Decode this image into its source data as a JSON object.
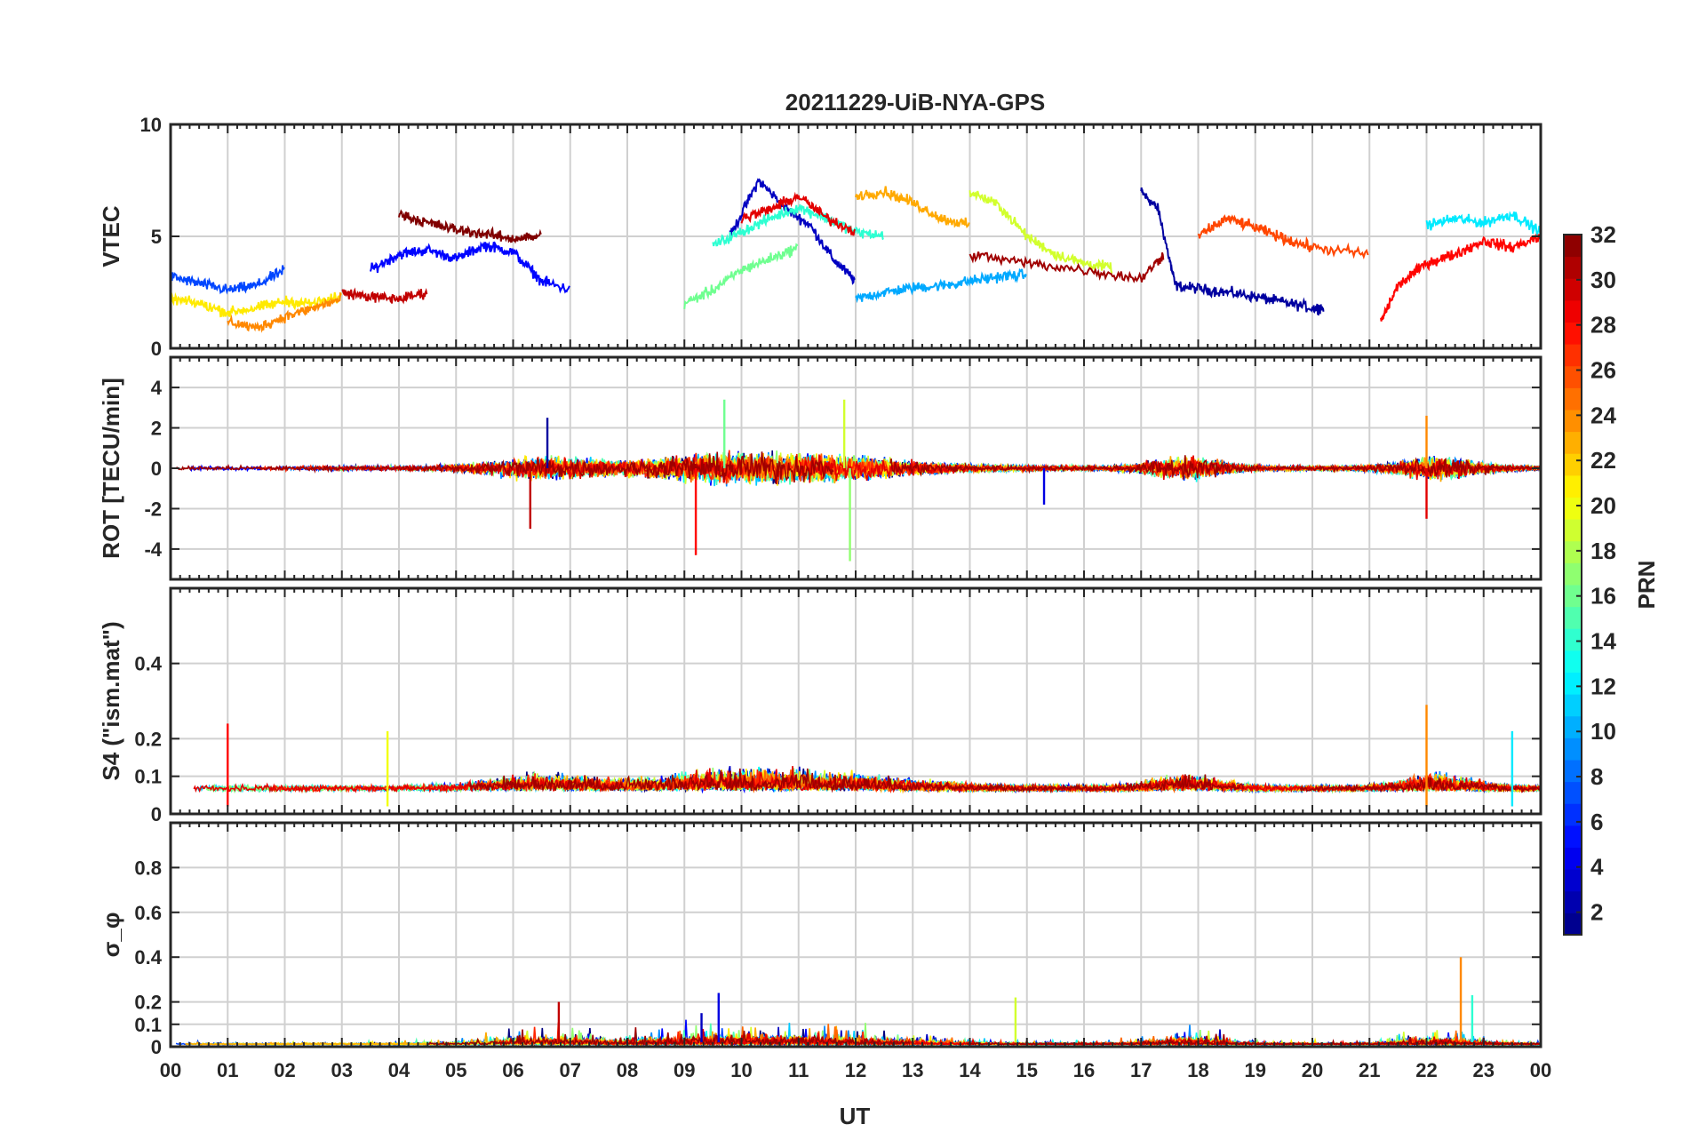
{
  "chart_data": [
    {
      "type": "line",
      "panel": "vtec",
      "title": "20211229-UiB-NYA-GPS",
      "ylabel": "VTEC",
      "ylim": [
        0,
        10
      ],
      "yticks": [
        "0",
        "5",
        "10"
      ],
      "yticks_values": [
        0,
        5,
        10
      ],
      "grid": true,
      "color_by": "PRN",
      "series": [
        {
          "prn": 2,
          "x": [
            17.0,
            17.3,
            17.6,
            18.2,
            18.8,
            19.4,
            20.0,
            20.2
          ],
          "y": [
            7.0,
            6.2,
            2.8,
            2.6,
            2.4,
            2.1,
            1.8,
            1.8
          ]
        },
        {
          "prn": 3,
          "x": [
            9.8,
            10.3,
            10.8,
            11.2,
            11.6,
            12.0
          ],
          "y": [
            5.0,
            7.5,
            6.2,
            5.5,
            4.0,
            3.0
          ]
        },
        {
          "prn": 5,
          "x": [
            3.5,
            4.0,
            4.5,
            5.0,
            5.5,
            6.0,
            6.5,
            7.0
          ],
          "y": [
            3.5,
            4.2,
            4.4,
            4.0,
            4.6,
            4.3,
            3.0,
            2.6
          ]
        },
        {
          "prn": 7,
          "x": [
            0.0,
            0.5,
            1.0,
            1.5,
            2.0
          ],
          "y": [
            3.2,
            2.9,
            2.6,
            2.8,
            3.5
          ]
        },
        {
          "prn": 10,
          "x": [
            12.0,
            12.5,
            13.0,
            13.5,
            14.0,
            14.5,
            15.0
          ],
          "y": [
            2.2,
            2.5,
            2.7,
            2.8,
            3.0,
            3.2,
            3.3
          ]
        },
        {
          "prn": 12,
          "x": [
            22.0,
            22.5,
            23.0,
            23.5,
            24.0
          ],
          "y": [
            5.5,
            5.8,
            5.6,
            6.0,
            5.2
          ]
        },
        {
          "prn": 14,
          "x": [
            9.5,
            10.0,
            10.5,
            11.0,
            11.5,
            12.0,
            12.5
          ],
          "y": [
            4.6,
            5.2,
            5.8,
            6.3,
            5.8,
            5.2,
            5.0
          ]
        },
        {
          "prn": 16,
          "x": [
            9.0,
            9.5,
            10.0,
            10.5,
            11.0
          ],
          "y": [
            2.0,
            2.6,
            3.5,
            4.0,
            4.5
          ]
        },
        {
          "prn": 19,
          "x": [
            14.0,
            14.5,
            15.0,
            15.5,
            16.0,
            16.5
          ],
          "y": [
            7.0,
            6.4,
            5.0,
            4.2,
            3.8,
            3.6
          ]
        },
        {
          "prn": 21,
          "x": [
            0.0,
            0.5,
            1.0,
            1.5,
            2.0,
            2.5,
            3.0
          ],
          "y": [
            2.2,
            2.0,
            1.6,
            1.8,
            2.1,
            2.0,
            2.3
          ]
        },
        {
          "prn": 23,
          "x": [
            12.0,
            12.5,
            13.0,
            13.5,
            14.0
          ],
          "y": [
            6.8,
            7.0,
            6.5,
            5.8,
            5.5
          ]
        },
        {
          "prn": 24,
          "x": [
            1.0,
            1.5,
            2.0,
            2.5,
            3.0
          ],
          "y": [
            1.2,
            0.9,
            1.4,
            1.8,
            2.2
          ]
        },
        {
          "prn": 26,
          "x": [
            18.0,
            18.5,
            19.0,
            19.5,
            20.0,
            21.0
          ],
          "y": [
            5.0,
            5.8,
            5.4,
            4.9,
            4.5,
            4.2
          ]
        },
        {
          "prn": 28,
          "x": [
            21.2,
            21.5,
            22.0,
            22.5,
            23.0,
            23.5,
            24.0
          ],
          "y": [
            1.2,
            2.8,
            3.8,
            4.2,
            4.8,
            4.5,
            5.0
          ]
        },
        {
          "prn": 30,
          "x": [
            3.0,
            3.5,
            4.0,
            4.5
          ],
          "y": [
            2.5,
            2.3,
            2.2,
            2.5
          ]
        },
        {
          "prn": 32,
          "x": [
            4.0,
            4.5,
            5.0,
            5.5,
            6.0,
            6.5
          ],
          "y": [
            6.0,
            5.6,
            5.3,
            5.1,
            4.9,
            5.0
          ]
        },
        {
          "prn": 31,
          "x": [
            14.0,
            15.0,
            16.0,
            17.0,
            17.4
          ],
          "y": [
            4.2,
            3.8,
            3.5,
            3.1,
            4.2
          ]
        },
        {
          "prn": 29,
          "x": [
            10.0,
            10.5,
            11.0,
            11.5,
            12.0
          ],
          "y": [
            5.8,
            6.2,
            6.8,
            5.8,
            5.2
          ]
        }
      ]
    },
    {
      "type": "line",
      "panel": "rot",
      "ylabel": "ROT [TECU/min]",
      "ylim": [
        -5.5,
        5.5
      ],
      "yticks": [
        "-4",
        "-2",
        "0",
        "2",
        "4"
      ],
      "yticks_values": [
        -4,
        -2,
        0,
        2,
        4
      ],
      "grid": true,
      "color_by": "PRN",
      "spikes": [
        {
          "prn": 2,
          "x": 6.6,
          "y": 2.5
        },
        {
          "prn": 28,
          "x": 9.2,
          "y": -4.3
        },
        {
          "prn": 17,
          "x": 11.9,
          "y": -4.6
        },
        {
          "prn": 19,
          "x": 11.8,
          "y": 3.4
        },
        {
          "prn": 30,
          "x": 6.3,
          "y": -3.0
        },
        {
          "prn": 24,
          "x": 22.0,
          "y": 2.6
        },
        {
          "prn": 29,
          "x": 22.0,
          "y": -2.5
        },
        {
          "prn": 4,
          "x": 15.3,
          "y": -1.8
        },
        {
          "prn": 16,
          "x": 9.7,
          "y": 3.4
        }
      ]
    },
    {
      "type": "line",
      "panel": "s4",
      "ylabel": "S4 (\"ism.mat\")",
      "ylim": [
        0,
        0.6
      ],
      "yticks": [
        "0",
        "0.1",
        "0.2",
        "0.4"
      ],
      "yticks_values": [
        0,
        0.1,
        0.2,
        0.4
      ],
      "grid": true,
      "color_by": "PRN",
      "spikes": [
        {
          "prn": 28,
          "x": 1.0,
          "y": 0.24
        },
        {
          "prn": 24,
          "x": 22.0,
          "y": 0.29
        },
        {
          "prn": 12,
          "x": 23.5,
          "y": 0.22
        },
        {
          "prn": 20,
          "x": 3.8,
          "y": 0.22
        }
      ]
    },
    {
      "type": "line",
      "panel": "sigma_phi",
      "ylabel": "σ_φ",
      "ylim": [
        0,
        1.0
      ],
      "yticks": [
        "0",
        "0.1",
        "0.2",
        "0.4",
        "0.6",
        "0.8"
      ],
      "yticks_values": [
        0,
        0.1,
        0.2,
        0.4,
        0.6,
        0.8
      ],
      "grid": true,
      "xlabel": "UT",
      "xlim": [
        0,
        24
      ],
      "xticks": [
        "00",
        "01",
        "02",
        "03",
        "04",
        "05",
        "06",
        "07",
        "08",
        "09",
        "10",
        "11",
        "12",
        "13",
        "14",
        "15",
        "16",
        "17",
        "18",
        "19",
        "20",
        "21",
        "22",
        "23",
        "00"
      ],
      "color_by": "PRN",
      "spikes": [
        {
          "prn": 24,
          "x": 22.6,
          "y": 0.4
        },
        {
          "prn": 14,
          "x": 22.8,
          "y": 0.23
        },
        {
          "prn": 19,
          "x": 14.8,
          "y": 0.22
        },
        {
          "prn": 4,
          "x": 9.6,
          "y": 0.24
        },
        {
          "prn": 30,
          "x": 6.8,
          "y": 0.2
        },
        {
          "prn": 3,
          "x": 9.3,
          "y": 0.15
        }
      ]
    }
  ],
  "colorbar": {
    "label": "PRN",
    "range": [
      1,
      32
    ],
    "ticks": [
      "2",
      "4",
      "6",
      "8",
      "10",
      "12",
      "14",
      "16",
      "18",
      "20",
      "22",
      "24",
      "26",
      "28",
      "30",
      "32"
    ],
    "colormap": "jet"
  }
}
